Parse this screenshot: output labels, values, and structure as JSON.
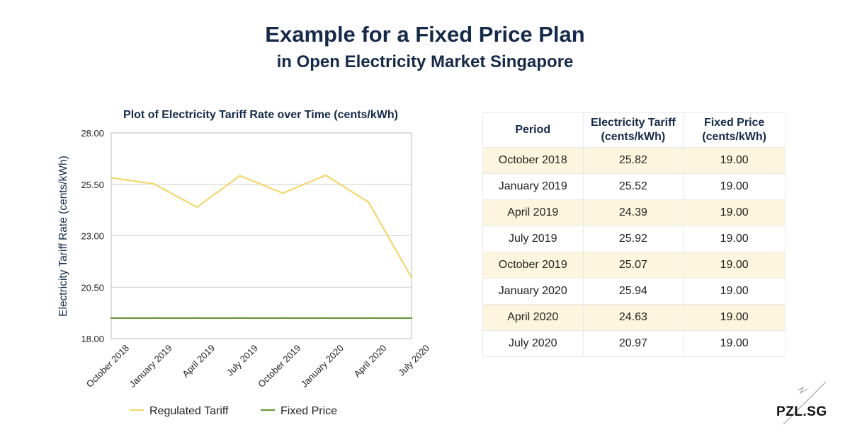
{
  "header": {
    "title": "Example for a Fixed Price Plan",
    "subtitle": "in Open Electricity Market Singapore"
  },
  "chart_data": {
    "type": "line",
    "title": "Plot of Electricity Tariff Rate over Time (cents/kWh)",
    "xlabel": "",
    "ylabel": "Electricity Tariff Rate (cents/kWh)",
    "categories": [
      "October 2018",
      "January 2019",
      "April 2019",
      "July 2019",
      "October 2019",
      "January 2020",
      "April 2020",
      "July 2020"
    ],
    "ylim": [
      18.0,
      28.0
    ],
    "yticks": [
      "18.00",
      "20.50",
      "23.00",
      "25.50",
      "28.00"
    ],
    "grid": true,
    "legend": "bottom",
    "series": [
      {
        "name": "Regulated Tariff",
        "color": "#f2d767",
        "values": [
          25.82,
          25.52,
          24.39,
          25.92,
          25.07,
          25.94,
          24.63,
          20.97
        ]
      },
      {
        "name": "Fixed Price",
        "color": "#6a9a3a",
        "values": [
          19.0,
          19.0,
          19.0,
          19.0,
          19.0,
          19.0,
          19.0,
          19.0
        ]
      }
    ]
  },
  "table": {
    "headers": [
      {
        "line1": "Period",
        "line2": ""
      },
      {
        "line1": "Electricity Tariff",
        "line2": "(cents/kWh)"
      },
      {
        "line1": "Fixed Price",
        "line2": "(cents/kWh)"
      }
    ],
    "rows": [
      [
        "October 2018",
        "25.82",
        "19.00"
      ],
      [
        "January 2019",
        "25.52",
        "19.00"
      ],
      [
        "April 2019",
        "24.39",
        "19.00"
      ],
      [
        "July 2019",
        "25.92",
        "19.00"
      ],
      [
        "October 2019",
        "25.07",
        "19.00"
      ],
      [
        "January 2020",
        "25.94",
        "19.00"
      ],
      [
        "April 2020",
        "24.63",
        "19.00"
      ],
      [
        "July 2020",
        "20.97",
        "19.00"
      ]
    ]
  },
  "logo": {
    "text": "PZL.SG"
  }
}
